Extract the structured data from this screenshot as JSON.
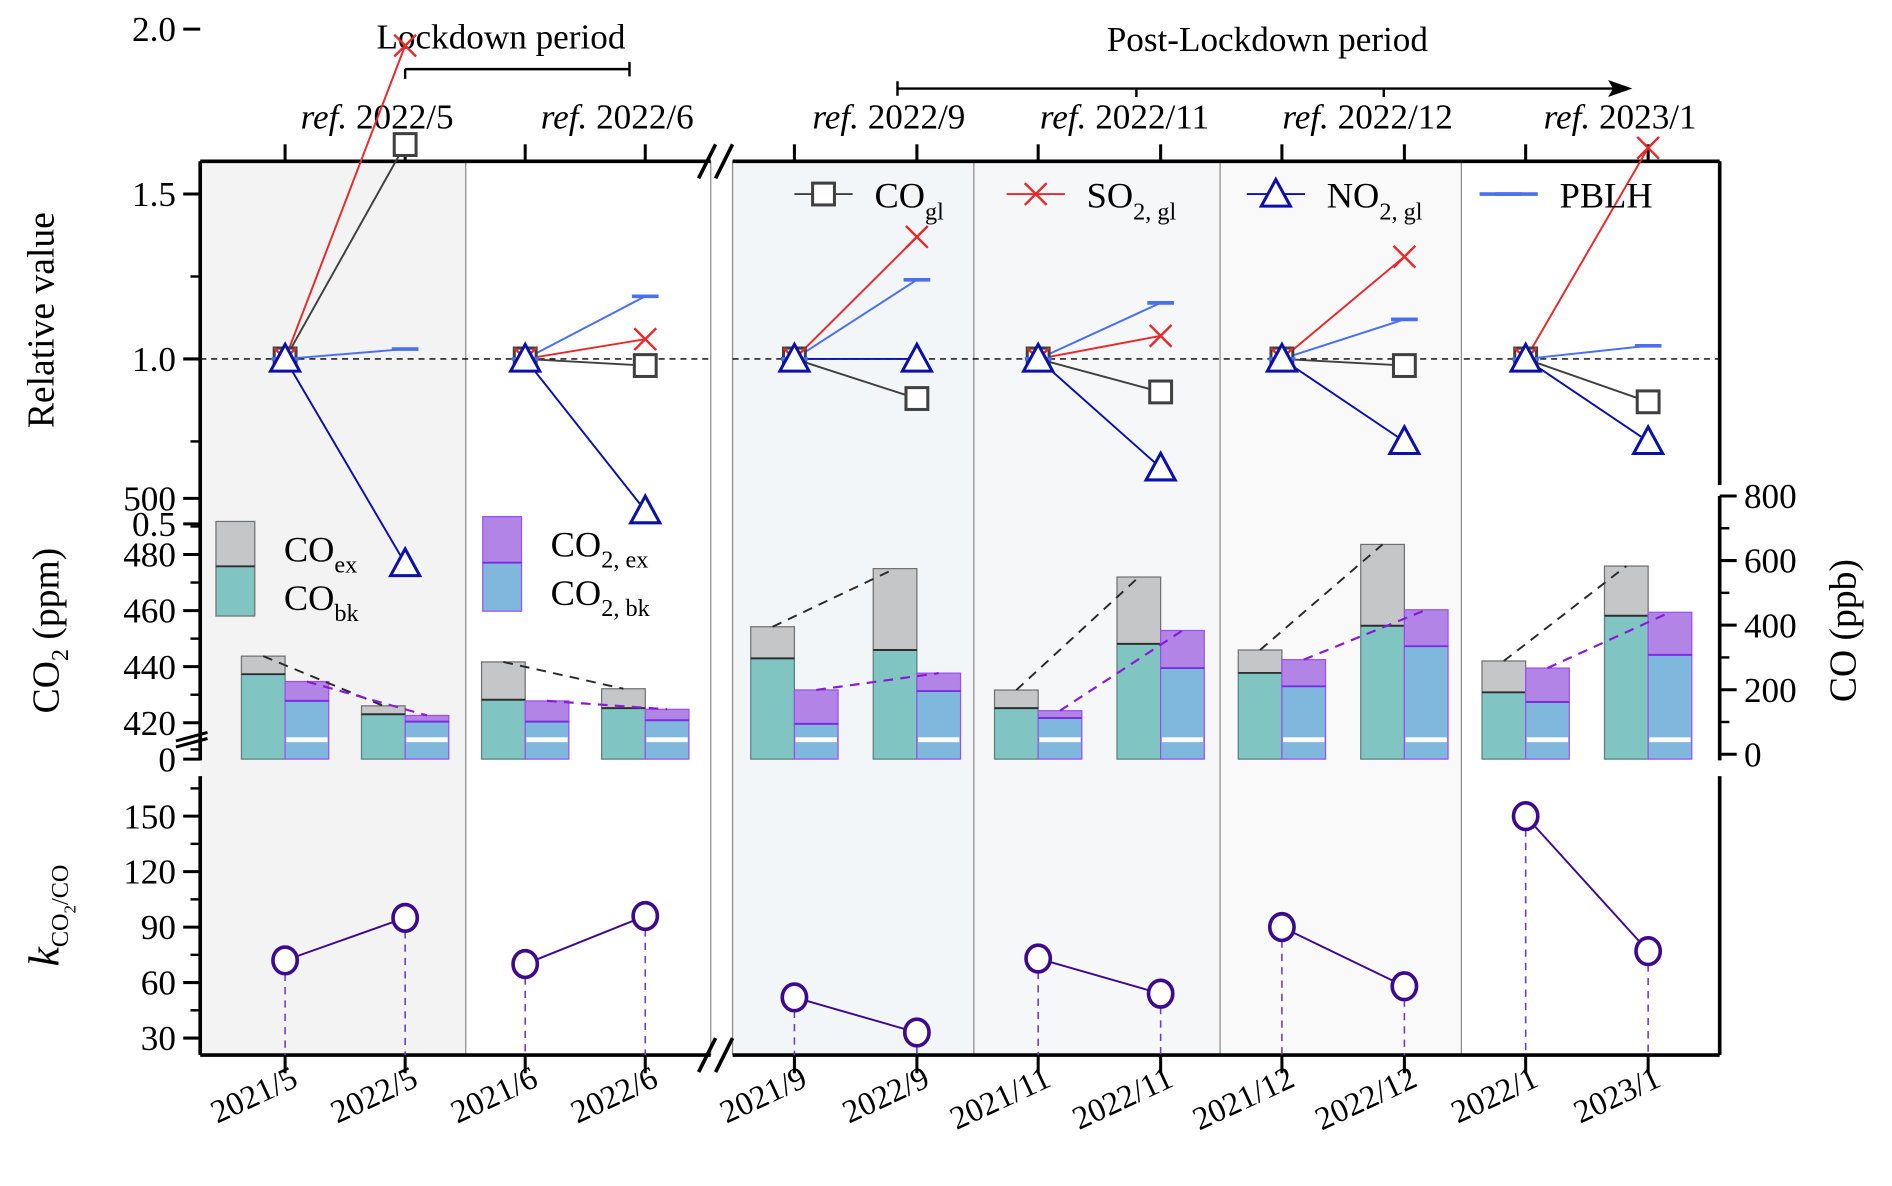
{
  "chart_data": {
    "type": "composite",
    "title": "",
    "periods": [
      {
        "label": "Lockdown period",
        "spans": [
          "ref. 2022/5",
          "ref. 2022/6"
        ]
      },
      {
        "label": "Post-Lockdown period",
        "spans": [
          "ref. 2022/9",
          "ref. 2022/11",
          "ref. 2022/12",
          "ref. 2023/1"
        ],
        "arrow": true
      }
    ],
    "top_axis_labels": [
      {
        "prefix": "ref.",
        "text": "2022/5"
      },
      {
        "prefix": "ref.",
        "text": "2022/6"
      },
      {
        "prefix": "ref.",
        "text": "2022/9"
      },
      {
        "prefix": "ref.",
        "text": "2022/11"
      },
      {
        "prefix": "ref.",
        "text": "2022/12"
      },
      {
        "prefix": "ref.",
        "text": "2023/1"
      }
    ],
    "categories": [
      "2021/5",
      "2022/5",
      "2021/6",
      "2022/6",
      "2021/9",
      "2022/9",
      "2021/11",
      "2022/11",
      "2021/12",
      "2022/12",
      "2022/1",
      "2023/1"
    ],
    "groups": [
      {
        "ref": "2022/5",
        "pair": [
          "2021/5",
          "2022/5"
        ],
        "background": "#f3f3f3"
      },
      {
        "ref": "2022/6",
        "pair": [
          "2021/6",
          "2022/6"
        ],
        "background": "#ffffff"
      },
      {
        "ref": "2022/9",
        "pair": [
          "2021/9",
          "2022/9"
        ],
        "background": "#f3f6f8"
      },
      {
        "ref": "2022/11",
        "pair": [
          "2021/11",
          "2022/11"
        ],
        "background": "#f6f7f8"
      },
      {
        "ref": "2022/12",
        "pair": [
          "2021/12",
          "2022/12"
        ],
        "background": "#f9f9f9"
      },
      {
        "ref": "2023/1",
        "pair": [
          "2022/1",
          "2023/1"
        ],
        "background": "#ffffff"
      }
    ],
    "axis_break": "between 2022/6 and 2021/9",
    "panels": [
      {
        "id": "relative",
        "type": "line",
        "ylabel": "Relative value",
        "ylim": [
          0.3,
          2.2
        ],
        "yticks": [
          0.5,
          1.0,
          1.5,
          2.0
        ],
        "ytick_labels": [
          "0.5",
          "1.0",
          "1.5",
          "2.0"
        ],
        "reference_line": 1.0,
        "legend": [
          {
            "name": "CO",
            "sub": "gl",
            "marker": "square",
            "color": "#404040"
          },
          {
            "name": "SO",
            "sub": "2, gl",
            "marker": "x",
            "color": "#e8282b"
          },
          {
            "name": "NO",
            "sub": "2, gl",
            "marker": "triangle",
            "color": "#0a10a8"
          },
          {
            "name": "PBLH",
            "sub": "",
            "marker": "dash",
            "color": "#4a6ff0"
          }
        ],
        "series": [
          {
            "name": "CO_gl",
            "color": "#404040",
            "marker": "square",
            "values": [
              1.0,
              1.65,
              1.0,
              0.98,
              1.0,
              0.88,
              1.0,
              0.9,
              1.0,
              0.98,
              1.0,
              0.87
            ]
          },
          {
            "name": "SO2_gl",
            "color": "#e8282b",
            "marker": "x",
            "values": [
              1.0,
              1.95,
              1.0,
              1.06,
              1.0,
              1.37,
              1.0,
              1.07,
              1.0,
              1.31,
              1.0,
              1.64
            ]
          },
          {
            "name": "NO2_gl",
            "color": "#0a10a8",
            "marker": "triangle",
            "values": [
              1.0,
              0.38,
              1.0,
              0.54,
              1.0,
              1.0,
              1.0,
              0.67,
              1.0,
              0.75,
              1.0,
              0.75
            ]
          },
          {
            "name": "PBLH",
            "color": "#4a6ff0",
            "marker": "dash",
            "values": [
              1.0,
              1.03,
              1.0,
              1.19,
              1.0,
              1.24,
              1.0,
              1.17,
              1.0,
              1.12,
              1.0,
              1.04
            ]
          }
        ]
      },
      {
        "id": "concentrations",
        "type": "stacked-bar",
        "ylabel_left": "CO2 (ppm)",
        "ylabel_right": "CO (ppb)",
        "left_axis": {
          "break": true,
          "lower": [
            0
          ],
          "ylim": [
            410,
            500
          ],
          "yticks": [
            420,
            440,
            460,
            480,
            500
          ],
          "ytick_labels": [
            "0",
            "420",
            "440",
            "460",
            "480",
            "500"
          ]
        },
        "right_axis": {
          "ylim": [
            0,
            800
          ],
          "yticks": [
            0,
            200,
            400,
            600,
            800
          ],
          "ytick_labels": [
            "0",
            "200",
            "400",
            "600",
            "800"
          ]
        },
        "legend": [
          {
            "name": "CO",
            "sub": "ex",
            "color": "#c4c6c8"
          },
          {
            "name": "CO",
            "sub": "bk",
            "color": "#80c5c2"
          },
          {
            "name": "CO",
            "sub": "2, ex",
            "color": "#b184e6"
          },
          {
            "name": "CO",
            "sub": "2, bk",
            "color": "#80b7dc"
          }
        ],
        "series": [
          {
            "name": "CO_bk (ppb)",
            "axis": "right",
            "color": "#80c5c2",
            "values": [
              248,
              124,
              169,
              143,
              297,
              323,
              143,
              342,
              252,
              398,
              192,
              429
            ]
          },
          {
            "name": "CO_total (ppb)",
            "axis": "right",
            "color": "#c4c6c8",
            "values": [
              304,
              150,
              286,
              203,
              395,
              575,
              199,
              549,
              323,
              650,
              289,
              583
            ]
          },
          {
            "name": "CO2_bk (ppm)",
            "axis": "left",
            "color": "#80b7dc",
            "values": [
              427.8,
              420.4,
              420.4,
              420.9,
              419.6,
              431.3,
              421.7,
              439.5,
              433.0,
              447.3,
              427.4,
              444.2
            ]
          },
          {
            "name": "CO2_total (ppm)",
            "axis": "left",
            "color": "#b184e6",
            "values": [
              434.7,
              422.6,
              427.8,
              424.8,
              431.7,
              437.7,
              424.3,
              452.9,
              442.5,
              460.3,
              439.5,
              459.4
            ]
          }
        ]
      },
      {
        "id": "ratio",
        "type": "line",
        "ylabel": "k CO2/CO",
        "ylim": [
          20,
          170
        ],
        "yticks": [
          30,
          60,
          90,
          120,
          150
        ],
        "ytick_labels": [
          "30",
          "60",
          "90",
          "120",
          "150"
        ],
        "series": [
          {
            "name": "k_CO2/CO",
            "color": "#3d0a8f",
            "marker": "circle",
            "values": [
              72,
              95,
              70,
              96,
              52,
              33,
              73,
              54,
              90,
              58,
              150,
              77
            ]
          }
        ]
      }
    ]
  }
}
